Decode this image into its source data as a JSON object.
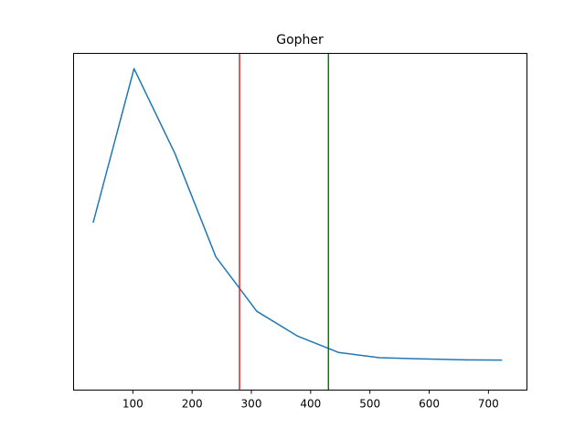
{
  "chart_data": {
    "type": "line",
    "title": "Gopher",
    "xlabel": "",
    "ylabel": "",
    "xlim": [
      0,
      765
    ],
    "ylim": [
      0,
      1
    ],
    "x_ticks": [
      100,
      200,
      300,
      400,
      500,
      600,
      700
    ],
    "y_ticks": [],
    "grid": false,
    "series": [
      {
        "color": "#1f77b4",
        "x": [
          33,
          102,
          171,
          240,
          309,
          378,
          447,
          516,
          585,
          654,
          723
        ],
        "y": [
          0.497,
          0.998,
          0.722,
          0.386,
          0.209,
          0.128,
          0.075,
          0.058,
          0.054,
          0.051,
          0.05
        ]
      }
    ],
    "vlines": [
      {
        "x": 280,
        "color": "#d62728"
      },
      {
        "x": 430,
        "color": "#008000"
      }
    ]
  }
}
